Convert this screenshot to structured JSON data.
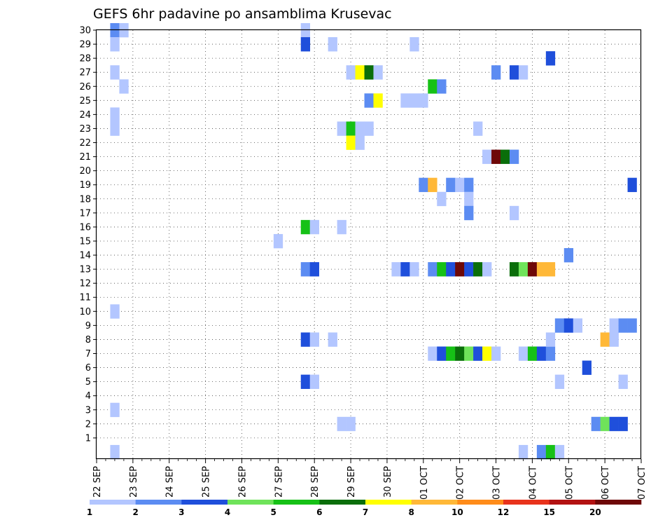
{
  "chart_data": {
    "type": "heatmap",
    "title": "GEFS 6hr padavine po ansamblima Krusevac",
    "xlabel": "",
    "ylabel": "",
    "x_unit": "6-hour steps",
    "x_range": [
      "2025-09-22 00Z",
      "2025-10-07 00Z"
    ],
    "x_ticks": [
      "22 SEP",
      "23 SEP",
      "24 SEP",
      "25 SEP",
      "26 SEP",
      "27 SEP",
      "28 SEP",
      "29 SEP",
      "30 SEP",
      "01 OCT",
      "02 OCT",
      "03 OCT",
      "04 OCT",
      "05 OCT",
      "06 OCT",
      "07 OCT"
    ],
    "y_ticks": [
      1,
      2,
      3,
      4,
      5,
      6,
      7,
      8,
      9,
      10,
      11,
      12,
      13,
      14,
      15,
      16,
      17,
      18,
      19,
      20,
      21,
      22,
      23,
      24,
      25,
      26,
      27,
      28,
      29,
      30
    ],
    "ylim": [
      0,
      30
    ],
    "grid": true,
    "legend": {
      "placement": "bottom",
      "labels": [
        "1",
        "2",
        "3",
        "4",
        "5",
        "6",
        "7",
        "8",
        "10",
        "12",
        "15",
        "20"
      ],
      "colors": [
        "#b3c6ff",
        "#5c8cf2",
        "#1f4fdb",
        "#6fe35a",
        "#16c116",
        "#0a6e0a",
        "#ffff00",
        "#ffb838",
        "#ff8c1a",
        "#e8331c",
        "#b31212",
        "#6e0808"
      ]
    },
    "cells": [
      [
        "09-22 12",
        30,
        2
      ],
      [
        "09-22 18",
        30,
        1
      ],
      [
        "09-22 12",
        29,
        1
      ],
      [
        "09-22 12",
        27,
        1
      ],
      [
        "09-22 18",
        26,
        1
      ],
      [
        "09-22 12",
        24,
        1
      ],
      [
        "09-22 12",
        23,
        1
      ],
      [
        "09-22 12",
        10,
        1
      ],
      [
        "09-22 12",
        3,
        1
      ],
      [
        "09-22 12",
        0,
        1
      ],
      [
        "09-27 18",
        30,
        1
      ],
      [
        "09-27 18",
        29,
        3
      ],
      [
        "09-28 12",
        29,
        1
      ],
      [
        "09-27 00",
        15,
        1
      ],
      [
        "09-27 18",
        16,
        5
      ],
      [
        "09-28 00",
        16,
        1
      ],
      [
        "09-28 18",
        16,
        1
      ],
      [
        "09-27 18",
        13,
        2
      ],
      [
        "09-28 00",
        13,
        3
      ],
      [
        "09-27 18",
        8,
        3
      ],
      [
        "09-28 00",
        8,
        1
      ],
      [
        "09-28 12",
        8,
        1
      ],
      [
        "09-27 18",
        5,
        3
      ],
      [
        "09-28 00",
        5,
        1
      ],
      [
        "09-29 00",
        27,
        1
      ],
      [
        "09-29 06",
        27,
        7
      ],
      [
        "09-29 12",
        27,
        6
      ],
      [
        "09-29 18",
        27,
        1
      ],
      [
        "09-29 12",
        25,
        2
      ],
      [
        "09-29 18",
        25,
        7
      ],
      [
        "09-28 18",
        23,
        1
      ],
      [
        "09-29 00",
        23,
        5
      ],
      [
        "09-29 06",
        23,
        1
      ],
      [
        "09-29 12",
        23,
        1
      ],
      [
        "09-29 00",
        22,
        7
      ],
      [
        "09-29 06",
        22,
        1
      ],
      [
        "09-28 18",
        2,
        1
      ],
      [
        "09-29 00",
        2,
        1
      ],
      [
        "09-30 18",
        29,
        1
      ],
      [
        "09-30 12",
        25,
        1
      ],
      [
        "09-30 18",
        25,
        1
      ],
      [
        "10-01 00",
        25,
        1
      ],
      [
        "09-30 06",
        13,
        1
      ],
      [
        "09-30 12",
        13,
        3
      ],
      [
        "09-30 18",
        13,
        1
      ],
      [
        "10-01 06",
        26,
        5
      ],
      [
        "10-01 12",
        26,
        2
      ],
      [
        "10-01 00",
        19,
        2
      ],
      [
        "10-01 06",
        19,
        8
      ],
      [
        "10-01 18",
        19,
        2
      ],
      [
        "10-02 00",
        19,
        1
      ],
      [
        "10-02 06",
        19,
        2
      ],
      [
        "10-01 12",
        18,
        1
      ],
      [
        "10-02 06",
        18,
        1
      ],
      [
        "10-02 06",
        17,
        2
      ],
      [
        "10-01 06",
        13,
        2
      ],
      [
        "10-01 12",
        13,
        5
      ],
      [
        "10-01 18",
        13,
        3
      ],
      [
        "10-02 00",
        13,
        12
      ],
      [
        "10-02 06",
        13,
        3
      ],
      [
        "10-02 12",
        13,
        6
      ],
      [
        "10-02 18",
        13,
        1
      ],
      [
        "10-01 06",
        7,
        1
      ],
      [
        "10-01 12",
        7,
        3
      ],
      [
        "10-01 18",
        7,
        5
      ],
      [
        "10-02 00",
        7,
        6
      ],
      [
        "10-02 06",
        7,
        4
      ],
      [
        "10-02 12",
        7,
        3
      ],
      [
        "10-02 18",
        7,
        7
      ],
      [
        "10-03 00",
        7,
        1
      ],
      [
        "10-02 12",
        23,
        1
      ],
      [
        "10-03 00",
        27,
        2
      ],
      [
        "10-03 12",
        27,
        3
      ],
      [
        "10-03 18",
        27,
        1
      ],
      [
        "10-02 18",
        21,
        1
      ],
      [
        "10-03 00",
        21,
        12
      ],
      [
        "10-03 06",
        21,
        6
      ],
      [
        "10-03 12",
        21,
        2
      ],
      [
        "10-03 12",
        17,
        1
      ],
      [
        "10-03 12",
        13,
        6
      ],
      [
        "10-03 18",
        13,
        4
      ],
      [
        "10-04 00",
        13,
        12
      ],
      [
        "10-04 06",
        13,
        8
      ],
      [
        "10-04 12",
        13,
        8
      ],
      [
        "10-03 18",
        7,
        1
      ],
      [
        "10-04 00",
        7,
        5
      ],
      [
        "10-04 06",
        7,
        3
      ],
      [
        "10-04 12",
        7,
        2
      ],
      [
        "10-03 18",
        0,
        1
      ],
      [
        "10-04 06",
        0,
        2
      ],
      [
        "10-04 12",
        0,
        5
      ],
      [
        "10-04 18",
        0,
        1
      ],
      [
        "10-04 12",
        28,
        3
      ],
      [
        "10-05 00",
        14,
        2
      ],
      [
        "10-04 18",
        9,
        2
      ],
      [
        "10-05 00",
        9,
        3
      ],
      [
        "10-05 06",
        9,
        1
      ],
      [
        "10-04 12",
        8,
        1
      ],
      [
        "10-04 18",
        5,
        1
      ],
      [
        "10-05 12",
        6,
        3
      ],
      [
        "10-06 00",
        8,
        8
      ],
      [
        "10-06 06",
        8,
        1
      ],
      [
        "10-06 06",
        9,
        1
      ],
      [
        "10-06 12",
        9,
        2
      ],
      [
        "10-06 18",
        9,
        2
      ],
      [
        "10-06 12",
        5,
        1
      ],
      [
        "10-05 18",
        2,
        2
      ],
      [
        "10-06 00",
        2,
        4
      ],
      [
        "10-06 06",
        2,
        3
      ],
      [
        "10-06 12",
        2,
        3
      ],
      [
        "10-06 18",
        19,
        3
      ]
    ]
  }
}
